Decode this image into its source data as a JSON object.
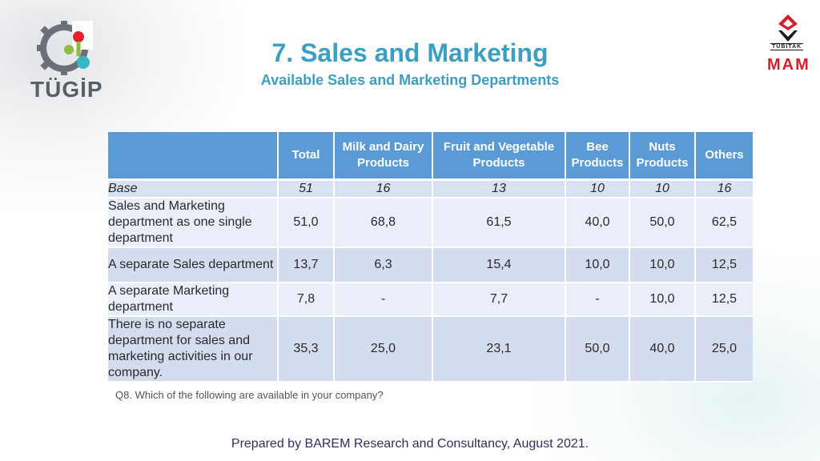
{
  "logos": {
    "left_text": "TÜGİP",
    "right_top": "TÜBİTAK",
    "right_bottom": "MAM"
  },
  "title": "7. Sales and Marketing",
  "subtitle": "Available Sales and Marketing Departments",
  "table": {
    "columns": [
      "",
      "Total",
      "Milk and Dairy Products",
      "Fruit and Vegetable Products",
      "Bee Products",
      "Nuts Products",
      "Others"
    ],
    "rows": [
      {
        "label": "Base",
        "values": [
          "51",
          "16",
          "13",
          "10",
          "10",
          "16"
        ]
      },
      {
        "label": "Sales and Marketing department as one single department",
        "values": [
          "51,0",
          "68,8",
          "61,5",
          "40,0",
          "50,0",
          "62,5"
        ]
      },
      {
        "label": "A separate Sales department",
        "values": [
          "13,7",
          "6,3",
          "15,4",
          "10,0",
          "10,0",
          "12,5"
        ]
      },
      {
        "label": "A separate Marketing department",
        "values": [
          "7,8",
          "-",
          "7,7",
          "-",
          "10,0",
          "12,5"
        ]
      },
      {
        "label": "There is no separate department for sales and marketing activities in our company.",
        "values": [
          "35,3",
          "25,0",
          "23,1",
          "50,0",
          "40,0",
          "25,0"
        ]
      }
    ]
  },
  "note": "Q8. Which of the following are available in your company?",
  "footer": "Prepared by BAREM Research and Consultancy, August 2021.",
  "colors": {
    "title": "#3b9fc4",
    "header_bg": "#5b9bd5",
    "row_light": "#e9eef8",
    "row_dark": "#d3ddef",
    "accent_red": "#d3202a"
  }
}
